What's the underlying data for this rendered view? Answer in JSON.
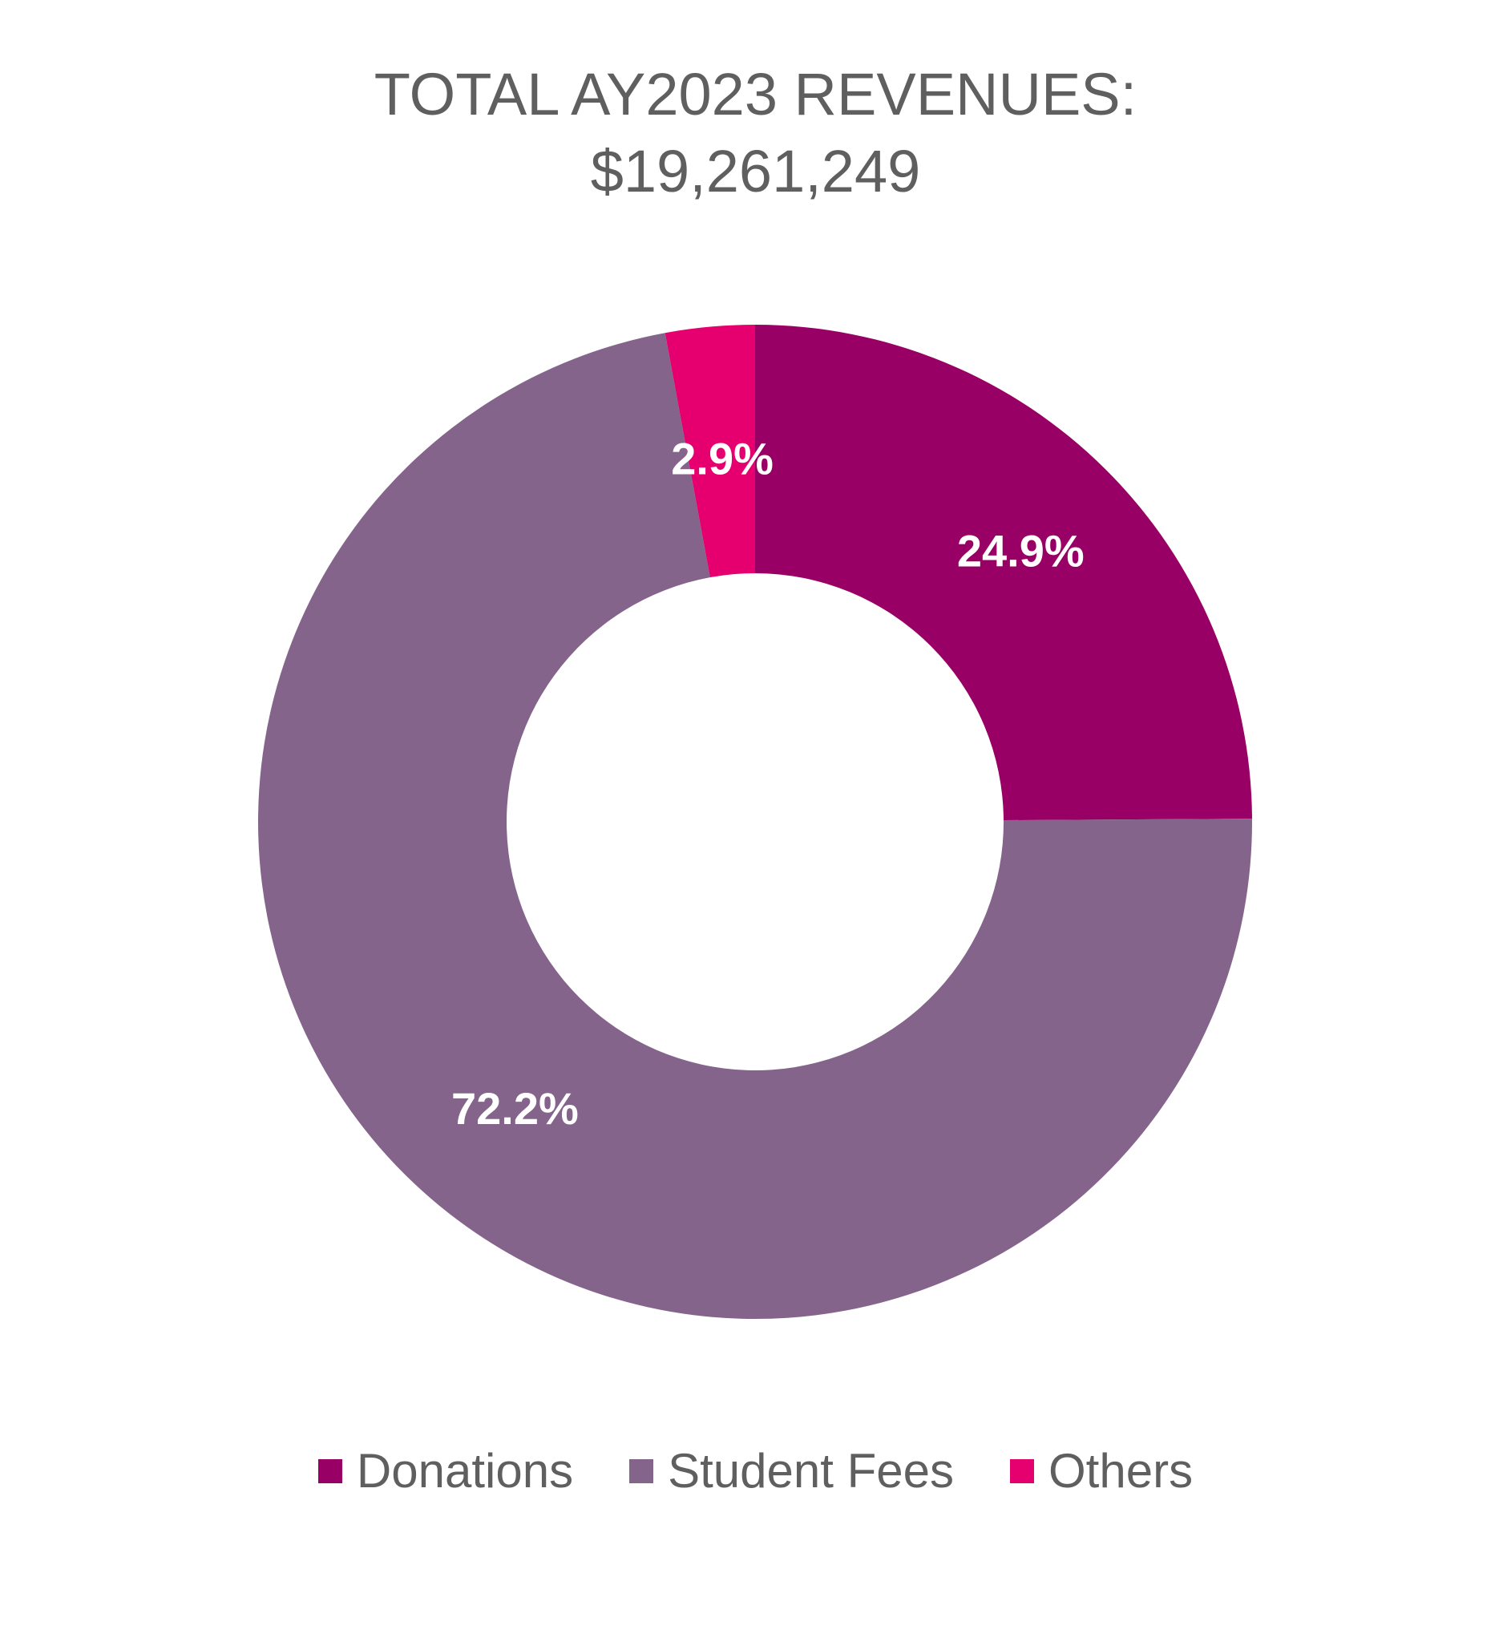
{
  "chart_data": {
    "type": "pie",
    "variant": "donut",
    "title_line1": "TOTAL AY2023 REVENUES:",
    "title_line2": "$19,261,249",
    "slices": [
      {
        "label": "Donations",
        "value": 24.9,
        "display": "24.9%",
        "color": "#990066"
      },
      {
        "label": "Student Fees",
        "value": 72.2,
        "display": "72.2%",
        "color": "#85648c"
      },
      {
        "label": "Others",
        "value": 2.9,
        "display": "2.9%",
        "color": "#e6006f"
      }
    ],
    "legend_position": "bottom",
    "data_label_color": "#ffffff"
  }
}
